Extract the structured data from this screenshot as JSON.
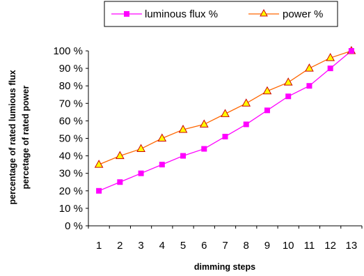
{
  "chart_data": {
    "type": "line",
    "x": [
      "1",
      "2",
      "3",
      "4",
      "5",
      "6",
      "7",
      "8",
      "9",
      "10",
      "11",
      "12",
      "13"
    ],
    "series": [
      {
        "name": "luminous flux %",
        "values": [
          20,
          25,
          30,
          35,
          40,
          44,
          51,
          58,
          66,
          74,
          80,
          90,
          100
        ],
        "color": "#ff00ff",
        "marker": "square"
      },
      {
        "name": "power %",
        "values": [
          35,
          40,
          44,
          50,
          55,
          58,
          64,
          70,
          77,
          82,
          90,
          96,
          100
        ],
        "color": "#ff6600",
        "marker": "triangle",
        "marker_fill": "#ffff00",
        "marker_edge": "#cc0000"
      }
    ],
    "xlabel": "dimming steps",
    "ylabel": [
      "percentage of rated lumious flux",
      "percetage of rated power"
    ],
    "ylim": [
      0,
      100
    ],
    "yticks": [
      "0 %",
      "10 %",
      "20 %",
      "30 %",
      "40 %",
      "50 %",
      "60 %",
      "70 %",
      "80 %",
      "90 %",
      "100 %"
    ],
    "grid": false,
    "legend_position": "top-right"
  }
}
